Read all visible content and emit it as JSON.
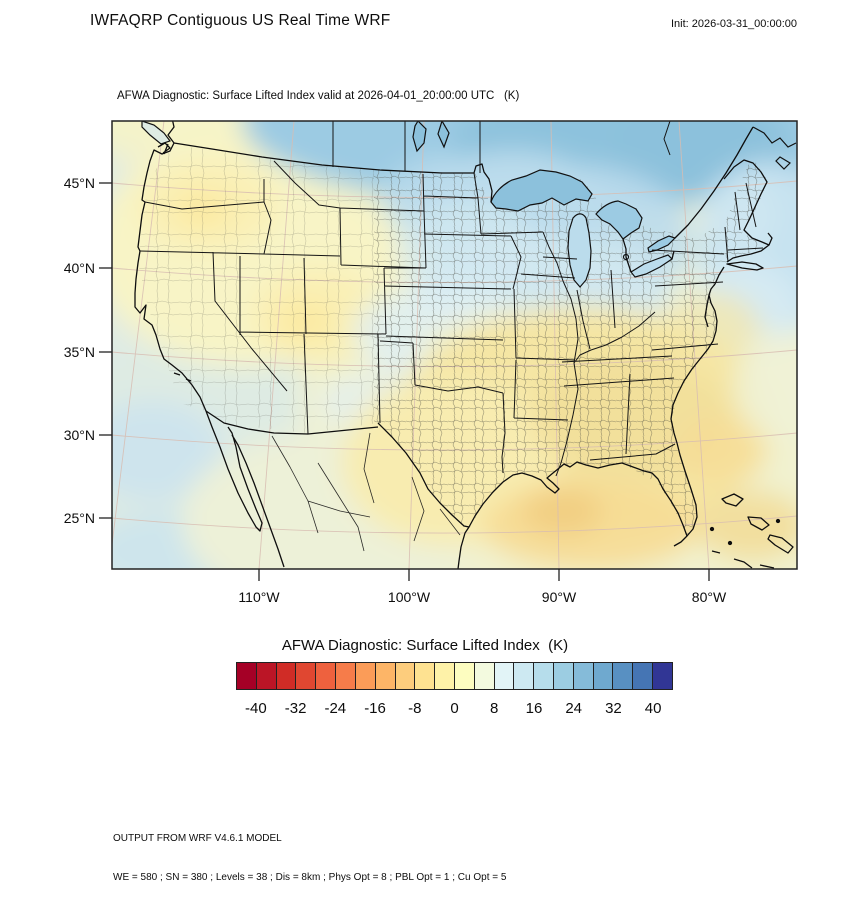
{
  "header": {
    "title": "IWFAQRP Contiguous US Real Time WRF",
    "init_label": "Init: 2026-03-31_00:00:00"
  },
  "map": {
    "subtitle": "AFWA Diagnostic: Surface Lifted Index valid at 2026-04-01_20:00:00 UTC   (K)",
    "lat_ticks": [
      "45°N",
      "40°N",
      "35°N",
      "30°N",
      "25°N"
    ],
    "lon_ticks": [
      "110°W",
      "100°W",
      "90°W",
      "80°W"
    ],
    "field_summary": [
      {
        "region": "Pacific Northwest / interior West US",
        "approx_value_K": "-4 to 0 (pale yellow)"
      },
      {
        "region": "Northern plains, Great Lakes, Canada",
        "approx_value_K": "+4 to +12 (blue)"
      },
      {
        "region": "South-central US and Southeast",
        "approx_value_K": "-8 to -2 (yellow/tan)"
      },
      {
        "region": "Gulf of Mexico",
        "approx_value_K": "-12 to -6 (deeper yellow/orange)"
      },
      {
        "region": "Northeast Atlantic offshore",
        "approx_value_K": "+4 to +8 (light blue)"
      }
    ]
  },
  "colorbar": {
    "title": "AFWA Diagnostic: Surface Lifted Index  (K)",
    "tick_labels": [
      "-40",
      "-32",
      "-24",
      "-16",
      "-8",
      "0",
      "8",
      "16",
      "24",
      "32",
      "40"
    ],
    "colors": [
      "#A50026",
      "#BB1526",
      "#D02C26",
      "#E04731",
      "#EE613E",
      "#F67C4A",
      "#FB9C58",
      "#FDB567",
      "#FDCD7D",
      "#FEE291",
      "#FEF2A8",
      "#FDFDC0",
      "#F3FADF",
      "#E2F4F7",
      "#CDE9F2",
      "#B6DDEB",
      "#9CCDE2",
      "#85BBD9",
      "#6FA9CF",
      "#5890C2",
      "#4575B4",
      "#313695"
    ]
  },
  "footer": {
    "line1": "OUTPUT FROM WRF V4.6.1 MODEL",
    "line2": "WE = 580 ; SN = 380 ; Levels = 38 ; Dis = 8km ; Phys Opt = 8 ; PBL Opt = 1 ; Cu Opt = 5"
  },
  "field_colors": {
    "base": "#F1F2D0",
    "sage": "#DEEBE3",
    "oceanblue": "#C8E2F0",
    "paleyellow": "#F8F4C6",
    "yellow2": "#FAF0B2",
    "deepyellow": "#FBE79B",
    "mexpale": "#EDF1D8",
    "canada": "#9CCBE3",
    "canada2": "#8CC1DC",
    "midwest": "#BBDCEC",
    "lightblue2": "#D2E8F1",
    "paleblue": "#DFEFF4",
    "cream": "#EFF2D6",
    "atlantic": "#C6E2F0",
    "neblue": "#D8ECF4",
    "tan": "#F5E6A4",
    "yellow": "#F8ECB0",
    "tan2": "#F2DF9A",
    "gulf": "#F6DC94",
    "orange": "#F1CC80",
    "peach": "#F2D992",
    "graticule": "#D8BDB2",
    "frame": "#222222"
  }
}
